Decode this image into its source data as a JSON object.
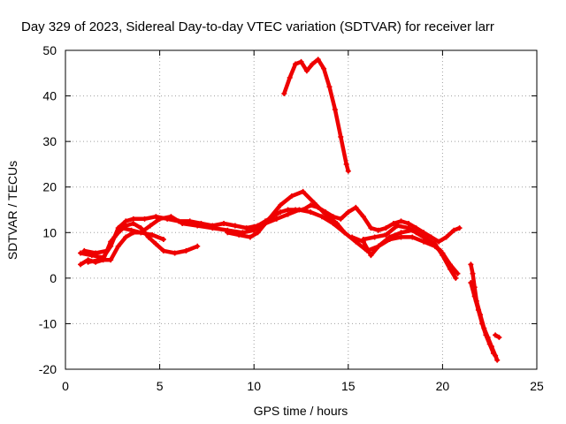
{
  "chart_data": {
    "type": "line",
    "title": "Day 329 of 2023, Sidereal Day-to-day VTEC variation (SDTVAR) for receiver larr",
    "xlabel": "GPS time / hours",
    "ylabel": "SDTVAR / TECUs",
    "xlim": [
      0,
      25
    ],
    "ylim": [
      -20,
      50
    ],
    "xticks": [
      0,
      5,
      10,
      15,
      20,
      25
    ],
    "yticks": [
      -20,
      -10,
      0,
      10,
      20,
      30,
      40,
      50
    ],
    "grid": true,
    "color": "#ee0000",
    "series": [
      {
        "name": "s1",
        "points": [
          [
            0.8,
            3
          ],
          [
            1.2,
            4
          ],
          [
            1.6,
            3.5
          ],
          [
            2.0,
            4
          ],
          [
            2.4,
            8
          ],
          [
            2.8,
            10
          ],
          [
            3.2,
            11.5
          ],
          [
            3.6,
            12
          ],
          [
            4.0,
            11
          ],
          [
            4.4,
            9
          ],
          [
            4.8,
            7.5
          ],
          [
            5.2,
            6
          ],
          [
            5.8,
            5.5
          ],
          [
            6.4,
            6
          ],
          [
            7.0,
            7
          ]
        ]
      },
      {
        "name": "s2",
        "points": [
          [
            0.8,
            5.5
          ],
          [
            1.4,
            5
          ],
          [
            2.0,
            4.5
          ],
          [
            2.4,
            7
          ],
          [
            2.8,
            11
          ],
          [
            3.2,
            12.5
          ],
          [
            3.6,
            13
          ],
          [
            4.2,
            13
          ],
          [
            4.8,
            13.5
          ],
          [
            5.4,
            13
          ],
          [
            6.0,
            12.5
          ],
          [
            6.6,
            12.5
          ],
          [
            7.2,
            12
          ],
          [
            7.8,
            11.5
          ],
          [
            8.4,
            12
          ],
          [
            9.0,
            11.5
          ],
          [
            9.6,
            11
          ],
          [
            10.2,
            11.5
          ],
          [
            10.6,
            12.5
          ],
          [
            11.0,
            13.5
          ],
          [
            11.4,
            14.5
          ],
          [
            11.8,
            15
          ],
          [
            12.2,
            15
          ],
          [
            12.6,
            15
          ],
          [
            13.0,
            16
          ],
          [
            13.4,
            15.5
          ],
          [
            13.8,
            14.5
          ],
          [
            14.2,
            13.5
          ],
          [
            14.6,
            13
          ],
          [
            15.0,
            14.5
          ],
          [
            15.4,
            15.5
          ],
          [
            15.8,
            13.5
          ],
          [
            16.2,
            11
          ],
          [
            16.6,
            10.5
          ],
          [
            17.0,
            11
          ],
          [
            17.4,
            12
          ],
          [
            17.8,
            12.5
          ],
          [
            18.2,
            12
          ],
          [
            18.6,
            11
          ],
          [
            19.0,
            10
          ],
          [
            19.4,
            9
          ],
          [
            19.8,
            8
          ],
          [
            20.2,
            9
          ],
          [
            20.6,
            10.5
          ],
          [
            20.9,
            11
          ]
        ]
      },
      {
        "name": "s3",
        "points": [
          [
            1.0,
            6
          ],
          [
            1.6,
            5.5
          ],
          [
            2.2,
            6
          ],
          [
            2.6,
            9
          ],
          [
            3.0,
            11
          ],
          [
            3.5,
            10.5
          ],
          [
            4.0,
            10
          ],
          [
            4.5,
            11.5
          ],
          [
            5.0,
            13
          ],
          [
            5.6,
            13.5
          ],
          [
            6.2,
            12
          ],
          [
            7.0,
            11.5
          ],
          [
            7.8,
            11
          ],
          [
            8.6,
            10.5
          ],
          [
            9.4,
            10
          ],
          [
            10.0,
            10.5
          ],
          [
            10.6,
            12
          ],
          [
            11.2,
            13
          ],
          [
            11.8,
            14
          ],
          [
            12.4,
            15
          ],
          [
            13.0,
            14.5
          ],
          [
            13.6,
            13.5
          ],
          [
            14.2,
            12
          ],
          [
            14.8,
            10
          ],
          [
            15.4,
            8
          ],
          [
            16.0,
            6
          ],
          [
            16.6,
            7
          ],
          [
            17.2,
            8.5
          ],
          [
            17.8,
            9
          ],
          [
            18.4,
            9
          ],
          [
            19.0,
            8
          ],
          [
            19.6,
            7
          ],
          [
            20.0,
            5.5
          ],
          [
            20.4,
            3
          ],
          [
            20.8,
            1
          ]
        ]
      },
      {
        "name": "s4",
        "points": [
          [
            1.2,
            3.5
          ],
          [
            1.8,
            4
          ],
          [
            2.4,
            4
          ],
          [
            2.8,
            7
          ],
          [
            3.2,
            9
          ],
          [
            3.6,
            10
          ],
          [
            4.0,
            10
          ],
          [
            4.6,
            9.5
          ],
          [
            5.2,
            8.5
          ]
        ]
      },
      {
        "name": "s5",
        "points": [
          [
            8.6,
            10
          ],
          [
            9.2,
            9.5
          ],
          [
            9.8,
            9
          ],
          [
            10.2,
            10
          ],
          [
            10.8,
            13
          ],
          [
            11.4,
            16
          ],
          [
            12.0,
            18
          ],
          [
            12.6,
            19
          ],
          [
            13.2,
            16.5
          ],
          [
            13.8,
            14
          ],
          [
            14.4,
            12
          ],
          [
            14.8,
            10
          ]
        ]
      },
      {
        "name": "s6",
        "points": [
          [
            15.2,
            9
          ],
          [
            15.8,
            8
          ],
          [
            16.2,
            5
          ],
          [
            16.6,
            7
          ],
          [
            17.2,
            9
          ],
          [
            17.8,
            10
          ],
          [
            18.4,
            10.5
          ],
          [
            19.0,
            9
          ],
          [
            19.6,
            7.5
          ],
          [
            20.0,
            5
          ],
          [
            20.4,
            2
          ],
          [
            20.7,
            0
          ]
        ]
      },
      {
        "name": "s7",
        "points": [
          [
            15.8,
            8.5
          ],
          [
            16.4,
            9
          ],
          [
            17.0,
            9.5
          ],
          [
            17.6,
            11.5
          ],
          [
            18.2,
            11
          ],
          [
            18.6,
            10
          ],
          [
            19.2,
            8.5
          ],
          [
            19.6,
            7
          ],
          [
            19.9,
            6
          ]
        ]
      },
      {
        "name": "s8",
        "points": [
          [
            11.6,
            40.5
          ],
          [
            11.9,
            44
          ],
          [
            12.2,
            47
          ],
          [
            12.5,
            47.5
          ],
          [
            12.8,
            45.5
          ],
          [
            13.1,
            47
          ],
          [
            13.4,
            48
          ],
          [
            13.7,
            46
          ],
          [
            14.0,
            42
          ],
          [
            14.3,
            37
          ],
          [
            14.6,
            31
          ],
          [
            14.9,
            25
          ],
          [
            15.0,
            23.5
          ]
        ]
      },
      {
        "name": "s9",
        "points": [
          [
            21.5,
            3
          ],
          [
            21.6,
            1
          ],
          [
            21.7,
            -2
          ],
          [
            21.8,
            -5
          ],
          [
            22.0,
            -8
          ],
          [
            22.2,
            -11
          ],
          [
            22.4,
            -13
          ],
          [
            22.6,
            -15
          ],
          [
            22.8,
            -17
          ],
          [
            22.9,
            -18
          ]
        ]
      },
      {
        "name": "s10",
        "points": [
          [
            21.5,
            -1
          ],
          [
            21.7,
            -4
          ],
          [
            21.9,
            -7
          ],
          [
            22.1,
            -10
          ],
          [
            22.3,
            -12.5
          ],
          [
            22.5,
            -14.5
          ],
          [
            22.7,
            -16.5
          ]
        ]
      },
      {
        "name": "s11",
        "points": [
          [
            22.8,
            -12.5
          ],
          [
            23.0,
            -13
          ]
        ]
      }
    ]
  }
}
